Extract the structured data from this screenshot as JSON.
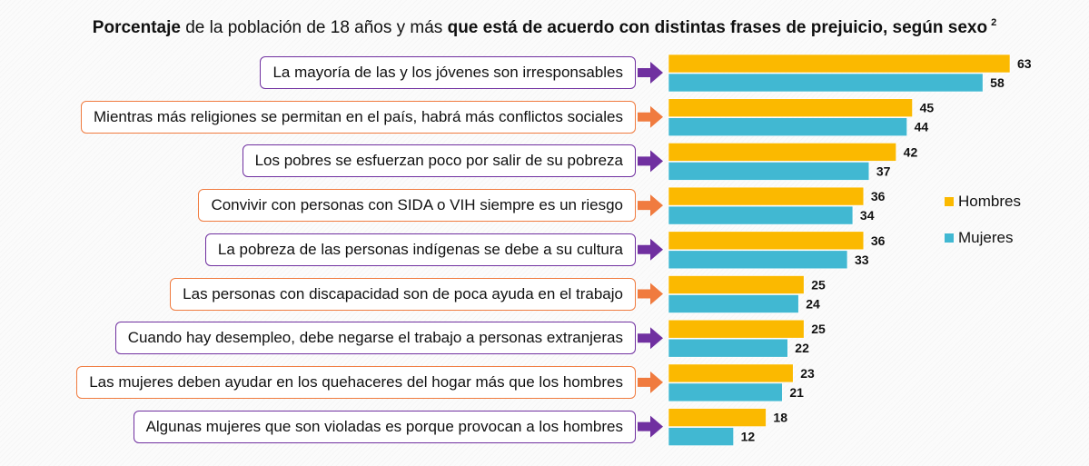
{
  "title": {
    "part1_bold": "Porcentaje",
    "part2": " de la población de 18 años y más ",
    "part3_bold": "que está de acuerdo con distintas frases de prejuicio, según sexo",
    "footnote": "2"
  },
  "colors": {
    "hombres": "#fbb900",
    "mujeres": "#41b8d2",
    "arrow_purple": "#7030a0",
    "arrow_orange": "#f07b3f"
  },
  "chart_data": {
    "type": "bar",
    "orientation": "horizontal",
    "title": "Porcentaje de la población de 18 años y más que está de acuerdo con distintas frases de prejuicio, según sexo",
    "xlabel": "",
    "ylabel": "",
    "xlim": [
      0,
      63
    ],
    "grid": false,
    "legend_position": "right",
    "categories": [
      "La mayoría de las y los jóvenes son irresponsables",
      "Mientras más religiones se permitan en el país, habrá más conflictos sociales",
      "Los pobres se esfuerzan poco por salir de su pobreza",
      "Convivir con personas con SIDA o VIH siempre es un riesgo",
      "La pobreza de las personas indígenas se debe a su cultura",
      "Las personas con discapacidad son de poca ayuda en el trabajo",
      "Cuando hay desempleo, debe negarse el trabajo a personas extranjeras",
      "Las mujeres deben ayudar en los quehaceres del hogar más que los hombres",
      "Algunas mujeres que son violadas es porque provocan a los hombres"
    ],
    "category_accent": [
      "purple",
      "orange",
      "purple",
      "orange",
      "purple",
      "orange",
      "purple",
      "orange",
      "purple"
    ],
    "series": [
      {
        "name": "Hombres",
        "values": [
          63,
          45,
          42,
          36,
          36,
          25,
          25,
          23,
          18
        ]
      },
      {
        "name": "Mujeres",
        "values": [
          58,
          44,
          37,
          34,
          33,
          24,
          22,
          21,
          12
        ]
      }
    ]
  }
}
